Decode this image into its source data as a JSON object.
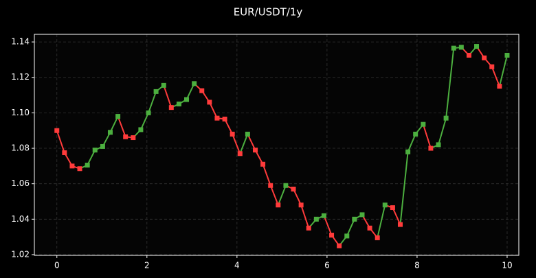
{
  "chart_data": {
    "type": "line",
    "title": "EUR/USDT/1y",
    "x": [
      0,
      0.169,
      0.339,
      0.508,
      0.678,
      0.847,
      1.017,
      1.186,
      1.356,
      1.525,
      1.695,
      1.864,
      2.034,
      2.203,
      2.373,
      2.542,
      2.712,
      2.881,
      3.051,
      3.22,
      3.39,
      3.559,
      3.729,
      3.898,
      4.068,
      4.237,
      4.407,
      4.576,
      4.746,
      4.915,
      5.085,
      5.254,
      5.424,
      5.593,
      5.763,
      5.932,
      6.102,
      6.271,
      6.441,
      6.61,
      6.78,
      6.949,
      7.119,
      7.288,
      7.458,
      7.627,
      7.797,
      7.966,
      8.136,
      8.305,
      8.475,
      8.644,
      8.814,
      8.983,
      9.153,
      9.322,
      9.492,
      9.661,
      9.831,
      10
    ],
    "values": [
      1.09,
      1.0775,
      1.07,
      1.0685,
      1.0705,
      1.079,
      1.081,
      1.089,
      1.098,
      1.0865,
      1.086,
      1.0905,
      1.1,
      1.112,
      1.1155,
      1.103,
      1.105,
      1.1075,
      1.1165,
      1.1125,
      1.106,
      1.097,
      1.0965,
      1.088,
      1.077,
      1.088,
      1.079,
      1.071,
      1.059,
      1.048,
      1.059,
      1.057,
      1.048,
      1.035,
      1.04,
      1.042,
      1.031,
      1.025,
      1.0305,
      1.04,
      1.0425,
      1.035,
      1.0295,
      1.048,
      1.0465,
      1.037,
      1.078,
      1.088,
      1.0935,
      1.08,
      1.082,
      1.097,
      1.1365,
      1.137,
      1.1325,
      1.1375,
      1.131,
      1.126,
      1.115,
      1.1325
    ],
    "up_color": "#4caf3f",
    "down_color": "#ff3b3b",
    "xlim": [
      -0.5,
      10.26
    ],
    "xticks": [
      0,
      2,
      4,
      6,
      8,
      10
    ],
    "ylim": [
      1.0196,
      1.1443
    ],
    "yticks": [
      1.02,
      1.04,
      1.06,
      1.08,
      {
        "value": 1.1,
        "label": "1.10"
      },
      1.12,
      1.14
    ],
    "grid": true
  }
}
